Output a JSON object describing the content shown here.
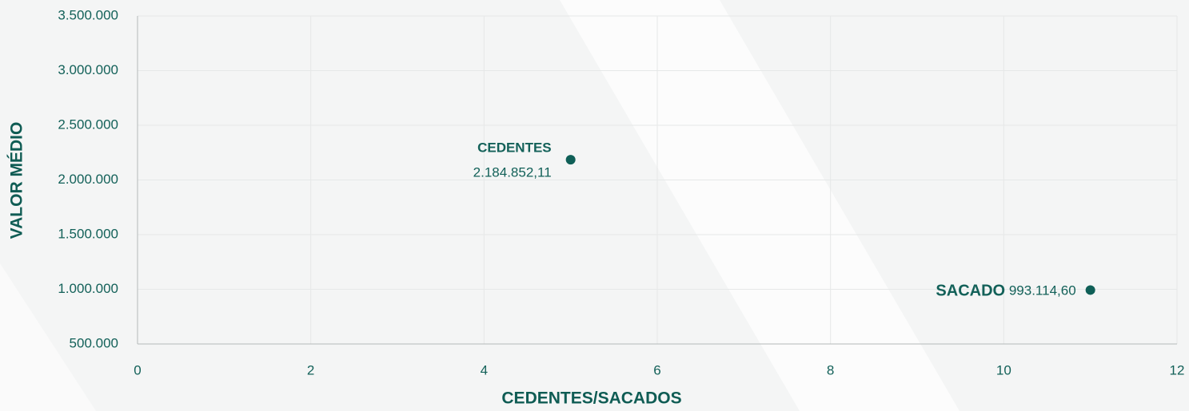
{
  "chart_data": {
    "type": "scatter",
    "xlabel": "CEDENTES/SACADOS",
    "ylabel": "VALOR MÉDIO",
    "series": [
      {
        "name": "CEDENTES",
        "color": "#0f5f57",
        "x": [
          5
        ],
        "values": [
          2184852.11
        ],
        "value_labels": [
          "2.184.852,11"
        ]
      },
      {
        "name": "SACADO",
        "color": "#0f5f57",
        "x": [
          11
        ],
        "values": [
          993114.6
        ],
        "value_labels": [
          "993.114,60"
        ]
      }
    ],
    "xlim": [
      0,
      12
    ],
    "xticks": [
      0,
      2,
      4,
      6,
      8,
      10,
      12
    ],
    "ylim": [
      500000,
      3500000
    ],
    "yticks": [
      {
        "value": 500000,
        "label": "500.000"
      },
      {
        "value": 1000000,
        "label": "1.000.000"
      },
      {
        "value": 1500000,
        "label": "1.500.000"
      },
      {
        "value": 2000000,
        "label": "2.000.000"
      },
      {
        "value": 2500000,
        "label": "2.500.000"
      },
      {
        "value": 3000000,
        "label": "3.000.000"
      },
      {
        "value": 3500000,
        "label": "3.500.000"
      }
    ],
    "grid": true
  }
}
